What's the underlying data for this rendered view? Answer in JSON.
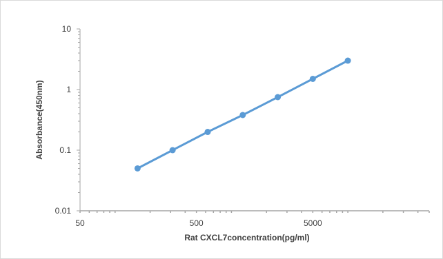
{
  "chart_data": {
    "type": "line",
    "title": "",
    "xlabel": "Rat  CXCL7concentration(pg/ml)",
    "ylabel": "Absorbance(450nm)",
    "x_scale": "log",
    "y_scale": "log",
    "xlim": [
      50,
      50000
    ],
    "ylim": [
      0.01,
      10
    ],
    "x_ticks": [
      {
        "value": 50,
        "label": "50"
      },
      {
        "value": 500,
        "label": "500"
      },
      {
        "value": 5000,
        "label": "5000"
      }
    ],
    "y_ticks": [
      {
        "value": 0.01,
        "label": "0.01"
      },
      {
        "value": 0.1,
        "label": "0.1"
      },
      {
        "value": 1,
        "label": "1"
      },
      {
        "value": 10,
        "label": "10"
      }
    ],
    "grid": false,
    "legend": "none",
    "series": [
      {
        "color": "#5b9bd5",
        "x": [
          156,
          312,
          625,
          1250,
          2500,
          5000,
          10000
        ],
        "y": [
          0.05,
          0.1,
          0.2,
          0.38,
          0.75,
          1.5,
          3.0
        ]
      }
    ]
  }
}
